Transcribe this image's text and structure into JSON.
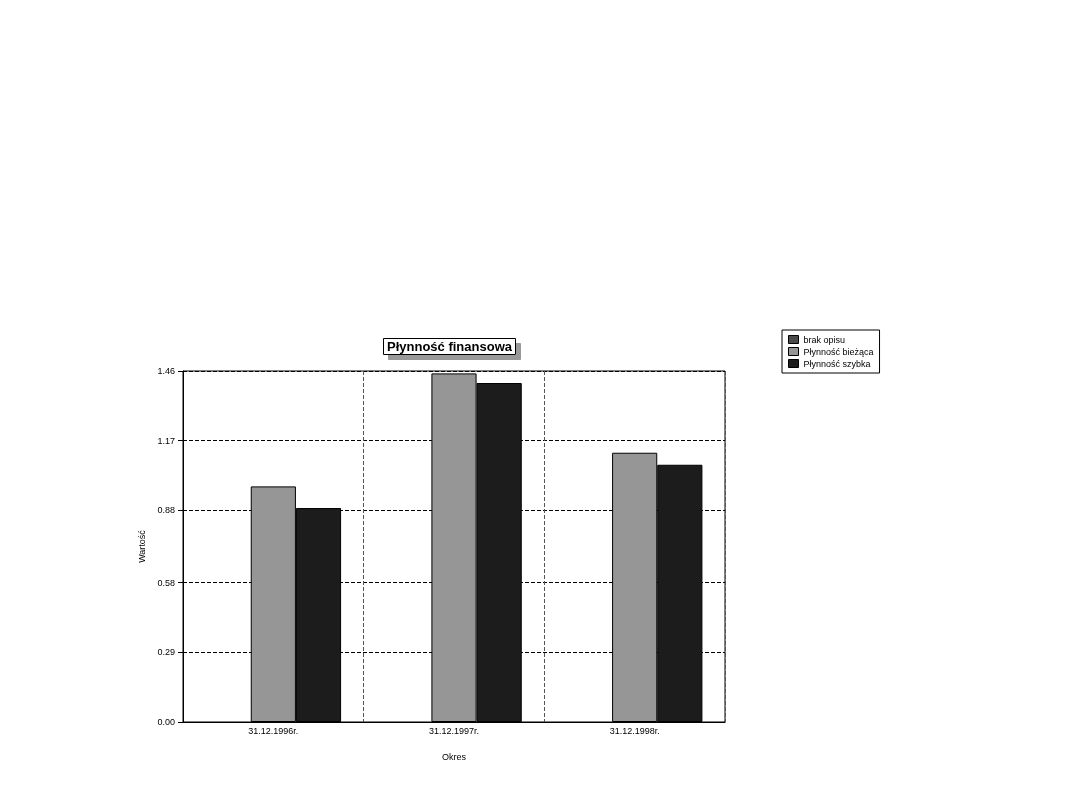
{
  "chart_data": {
    "type": "bar",
    "title": "Płynność finansowa",
    "xlabel": "Okres",
    "ylabel": "Wartość",
    "categories": [
      "31.12.1996r.",
      "31.12.1997r.",
      "31.12.1998r."
    ],
    "series": [
      {
        "name": "brak opisu",
        "color": "#4a4a4a",
        "values": [
          0,
          0,
          0
        ]
      },
      {
        "name": "Płynność bieżąca",
        "color": "#969696",
        "values": [
          0.98,
          1.45,
          1.12
        ]
      },
      {
        "name": "Płynność szybka",
        "color": "#1c1c1c",
        "values": [
          0.89,
          1.41,
          1.07
        ]
      }
    ],
    "ylim": [
      0,
      1.46
    ],
    "yticks": [
      {
        "value": 0,
        "label": "0.00"
      },
      {
        "value": 0.29,
        "label": "0.29"
      },
      {
        "value": 0.58,
        "label": "0.58"
      },
      {
        "value": 0.88,
        "label": "0.88"
      },
      {
        "value": 1.17,
        "label": "1.17"
      },
      {
        "value": 1.46,
        "label": "1.46"
      }
    ],
    "grid": true,
    "legend": "top right"
  }
}
